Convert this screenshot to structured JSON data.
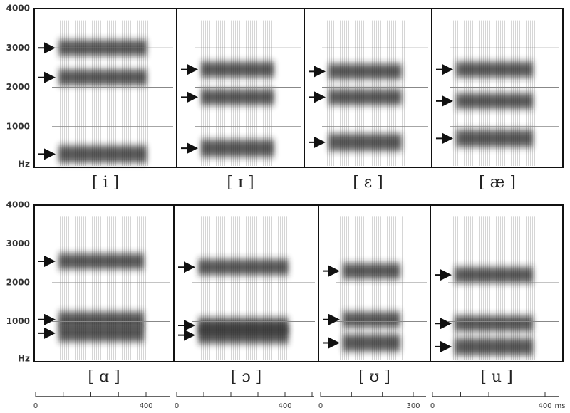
{
  "rows": [
    {
      "y_labels": [
        "4000",
        "3000",
        "2000",
        "1000",
        "Hz"
      ],
      "panels": [
        {
          "label": "[ i ]"
        },
        {
          "label": "[ ɪ ]"
        },
        {
          "label": "[ ɛ ]"
        },
        {
          "label": "[ æ ]"
        }
      ]
    },
    {
      "y_labels": [
        "4000",
        "3000",
        "2000",
        "1000",
        "Hz"
      ],
      "panels": [
        {
          "label": "[ ɑ ]"
        },
        {
          "label": "[ ɔ ]"
        },
        {
          "label": "[ ʊ ]"
        },
        {
          "label": "[ u ]"
        }
      ]
    }
  ],
  "time_axes": [
    {
      "labels": [
        "0",
        "400"
      ]
    },
    {
      "labels": [
        "0",
        "400"
      ]
    },
    {
      "labels": [
        "0",
        "300"
      ]
    },
    {
      "labels": [
        "0",
        "400"
      ]
    }
  ],
  "time_unit": "ms"
}
